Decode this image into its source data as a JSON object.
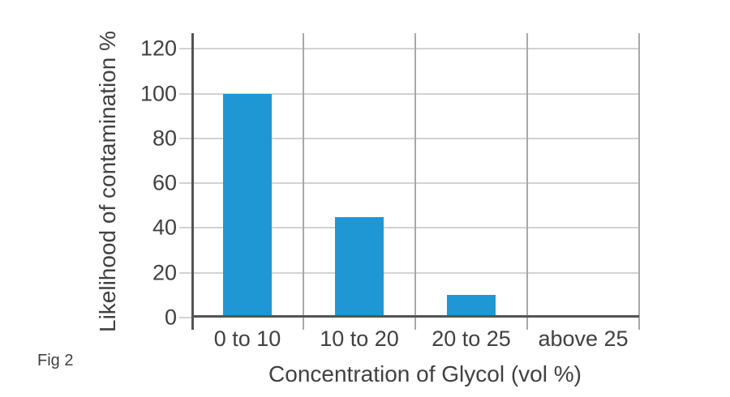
{
  "figure": {
    "label": "Fig 2"
  },
  "colors": {
    "bar": "#1e97d4",
    "axis": "#545456",
    "grid_horizontal": "#d2d2d2",
    "grid_vertical": "#a9a9ab",
    "text": "#414042",
    "background": "#ffffff"
  },
  "chart_data": {
    "type": "bar",
    "title": "",
    "categories": [
      "0 to 10",
      "10 to 20",
      "20 to 25",
      "above 25"
    ],
    "values": [
      100,
      45,
      10,
      0
    ],
    "xlabel": "Concentration of Glycol (vol %)",
    "ylabel": "Likelihood of contamination %",
    "yticks": [
      0,
      20,
      40,
      60,
      80,
      100,
      120
    ],
    "ylim": [
      0,
      127
    ],
    "grid": true,
    "legend": "none"
  }
}
